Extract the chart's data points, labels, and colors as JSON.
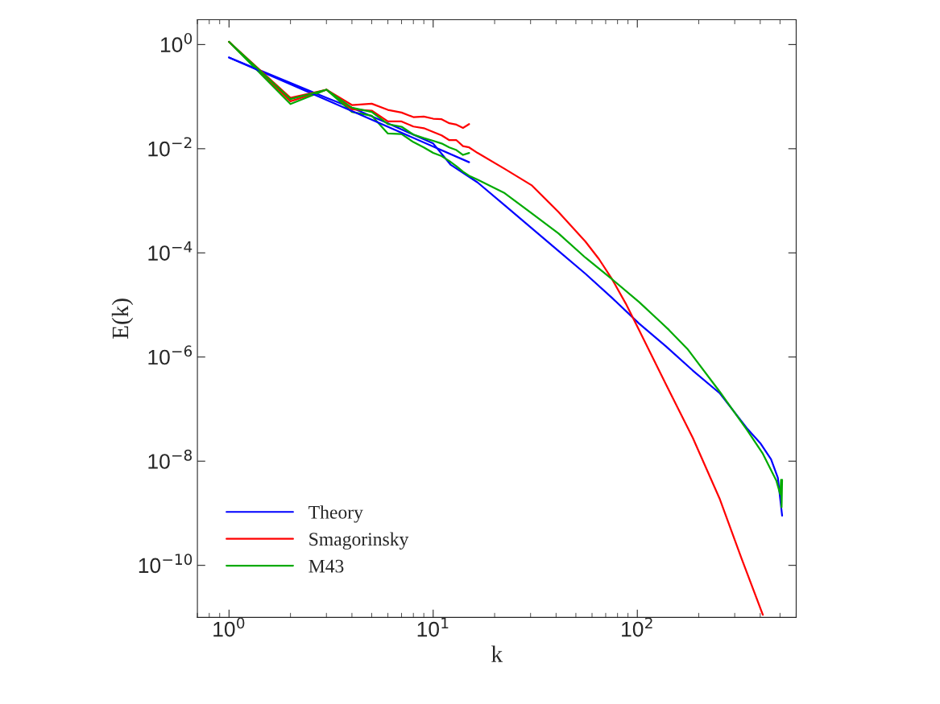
{
  "chart_data": {
    "type": "line",
    "xlabel": "k",
    "ylabel": "E(k)",
    "log": "xy",
    "grid": false,
    "legend": "bottom left",
    "line_style": "solid",
    "marker": "none",
    "xlim": [
      0.7,
      600
    ],
    "ylim": [
      1e-11,
      3
    ],
    "xticks": [
      {
        "value": 1,
        "label": "10$^{0}$"
      },
      {
        "value": 10,
        "label": "10$^{1}$"
      },
      {
        "value": 100,
        "label": "10$^{2}$"
      }
    ],
    "yticks": [
      {
        "value": 1e-10,
        "label": "10$^{−10}$"
      },
      {
        "value": 1e-08,
        "label": "10$^{−8}$"
      },
      {
        "value": 1e-06,
        "label": "10$^{−6}$"
      },
      {
        "value": 0.0001,
        "label": "10$^{−4}$"
      },
      {
        "value": 0.01,
        "label": "10$^{−2}$"
      },
      {
        "value": 1,
        "label": "10$^{0}$"
      }
    ],
    "series": [
      {
        "name": "Theory",
        "color": "#0000ff",
        "x": [
          1,
          2,
          3,
          4,
          6,
          10,
          12.2,
          16.5,
          22.4,
          30.3,
          41.1,
          55.7,
          75.3,
          102,
          138,
          187,
          254,
          344,
          400,
          452,
          488,
          512
        ],
        "values": [
          0.565,
          0.183,
          0.095,
          0.0612,
          0.0308,
          0.0126,
          0.00489,
          0.00225,
          0.00082,
          0.0003,
          0.000109,
          3.97e-05,
          1.36e-05,
          4.4e-06,
          1.61e-06,
          5.5e-07,
          2e-07,
          4.3e-08,
          2.23e-08,
          1.09e-08,
          4.8e-09,
          9e-10
        ]
      },
      {
        "name": "Smagorinsky",
        "color": "#ff0000",
        "x": [
          1,
          2,
          3,
          4,
          5,
          6,
          7,
          8,
          9,
          10,
          11,
          12,
          13,
          14,
          15,
          16.5,
          22.4,
          30.3,
          41.1,
          55.7,
          64.9,
          75.3,
          87.7,
          102,
          138,
          187,
          254,
          324,
          412
        ],
        "values": [
          1.13,
          0.0815,
          0.136,
          0.057,
          0.0538,
          0.0334,
          0.0334,
          0.0267,
          0.0248,
          0.021,
          0.018,
          0.0146,
          0.0146,
          0.0112,
          0.0106,
          0.0083,
          0.0041,
          0.002,
          0.00061,
          0.000165,
          7.6e-05,
          3.1e-05,
          1.07e-05,
          3.3e-06,
          3e-07,
          2.8e-08,
          1.84e-09,
          1.35e-10,
          1.12e-11
        ]
      },
      {
        "name": "M43",
        "color": "#00aa00",
        "x": [
          1,
          2,
          3,
          4,
          5,
          6,
          7,
          8,
          9,
          10,
          11,
          12,
          13,
          14,
          15,
          16.5,
          22.4,
          30.3,
          41.1,
          55.7,
          75.3,
          102,
          130,
          143,
          176,
          254,
          344,
          412,
          480,
          501,
          506,
          509,
          512
        ],
        "values": [
          1.13,
          0.072,
          0.136,
          0.0507,
          0.043,
          0.0196,
          0.0191,
          0.0134,
          0.0106,
          0.0083,
          0.0072,
          0.0058,
          0.0046,
          0.00363,
          0.00303,
          0.00254,
          0.0014,
          0.00058,
          0.000236,
          8.1e-05,
          3.1e-05,
          1.14e-05,
          4.7e-06,
          3.3e-06,
          1.43e-06,
          2.13e-07,
          4e-08,
          1.39e-08,
          4.2e-09,
          2.33e-09,
          4.4e-09,
          1.3e-09,
          4.4e-09
        ]
      },
      {
        "color": "#0000ff",
        "x": [
          1,
          4,
          15
        ],
        "values": [
          0.565,
          0.0528,
          0.0055
        ]
      },
      {
        "color": "#ff0000",
        "x": [
          1,
          2,
          3,
          4,
          5,
          6,
          7,
          8,
          9,
          10,
          11,
          12,
          13,
          14,
          15
        ],
        "values": [
          1.13,
          0.095,
          0.136,
          0.069,
          0.0733,
          0.0557,
          0.0495,
          0.0404,
          0.0414,
          0.0377,
          0.0368,
          0.0308,
          0.029,
          0.0251,
          0.0297
        ]
      },
      {
        "color": "#00aa00",
        "x": [
          1,
          2,
          3,
          4,
          5,
          6,
          7,
          8,
          9,
          10,
          11,
          12,
          13,
          14,
          15
        ],
        "values": [
          1.13,
          0.0897,
          0.136,
          0.0612,
          0.0507,
          0.0297,
          0.0264,
          0.0187,
          0.016,
          0.0142,
          0.0126,
          0.0106,
          0.0094,
          0.0076,
          0.0083
        ]
      }
    ]
  }
}
